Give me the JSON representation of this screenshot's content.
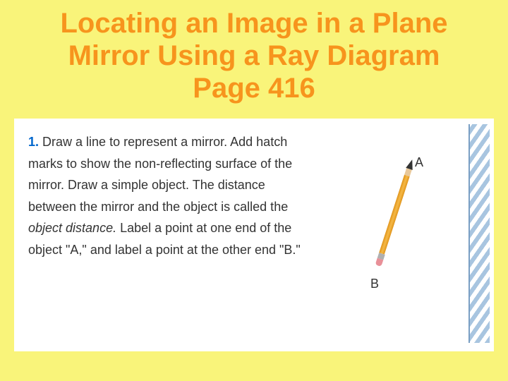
{
  "title": {
    "line1": "Locating an Image in a Plane",
    "line2": "Mirror Using a Ray Diagram",
    "line3": "Page 416",
    "color": "#f7941d",
    "fontsize": 40
  },
  "instruction": {
    "number": "1.",
    "text_parts": {
      "p1": "Draw a line to represent a mirror. Add hatch marks to show the non-reflecting surface of the mirror. Draw a simple object. The distance between the mirror and the object is called the ",
      "italic": "object distance.",
      "p2": " Label a point at one end of the object \"A,\" and label a point at the other end \"B.\"",
      "fontsize": 18
    }
  },
  "diagram": {
    "label_a": "A",
    "label_b": "B",
    "label_fontsize": 18,
    "mirror_hatch_color": "#a8c5e0",
    "mirror_line_color": "#7a9fc4",
    "pencil_body_color": "#f5b947",
    "pencil_eraser_color": "#e89098"
  },
  "background_color": "#f9f47a",
  "content_bg": "#ffffff"
}
